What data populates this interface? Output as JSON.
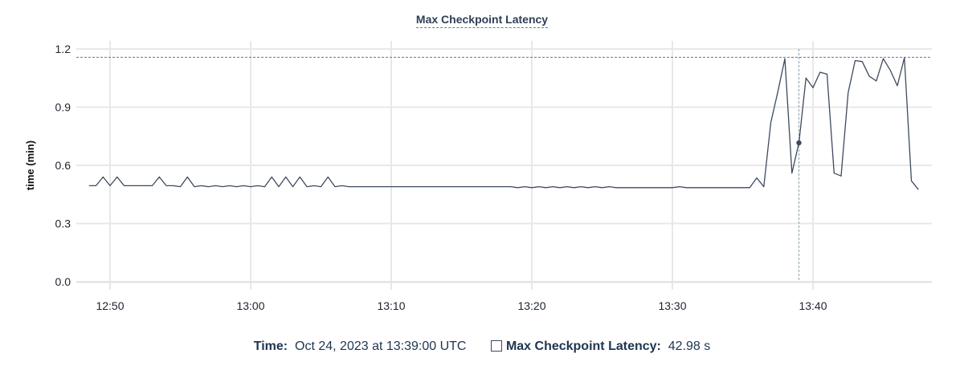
{
  "chart_data": {
    "type": "line",
    "title": "Max Checkpoint Latency",
    "xlabel": "",
    "ylabel": "time (min)",
    "ylim": [
      0,
      1.2
    ],
    "yticks": [
      "0.0",
      "0.3",
      "0.6",
      "0.9",
      "1.2"
    ],
    "xticks": [
      "12:50",
      "13:00",
      "13:10",
      "13:20",
      "13:30",
      "13:40"
    ],
    "grid": true,
    "line_color": "#3d4a5e",
    "threshold_line": 1.157,
    "hover": {
      "x": "13:39:00",
      "y": 0.716
    },
    "x": [
      "12:48:30",
      "12:49:00",
      "12:49:30",
      "12:50:00",
      "12:50:30",
      "12:51:00",
      "12:51:30",
      "12:52:00",
      "12:52:30",
      "12:53:00",
      "12:53:30",
      "12:54:00",
      "12:54:30",
      "12:55:00",
      "12:55:30",
      "12:56:00",
      "12:56:30",
      "12:57:00",
      "12:57:30",
      "12:58:00",
      "12:58:30",
      "12:59:00",
      "12:59:30",
      "13:00:00",
      "13:00:30",
      "13:01:00",
      "13:01:30",
      "13:02:00",
      "13:02:30",
      "13:03:00",
      "13:03:30",
      "13:04:00",
      "13:04:30",
      "13:05:00",
      "13:05:30",
      "13:06:00",
      "13:06:30",
      "13:07:00",
      "13:07:30",
      "13:08:00",
      "13:08:30",
      "13:09:00",
      "13:09:30",
      "13:10:00",
      "13:10:30",
      "13:11:00",
      "13:11:30",
      "13:12:00",
      "13:12:30",
      "13:13:00",
      "13:13:30",
      "13:14:00",
      "13:14:30",
      "13:15:00",
      "13:15:30",
      "13:16:00",
      "13:16:30",
      "13:17:00",
      "13:17:30",
      "13:18:00",
      "13:18:30",
      "13:19:00",
      "13:19:30",
      "13:20:00",
      "13:20:30",
      "13:21:00",
      "13:21:30",
      "13:22:00",
      "13:22:30",
      "13:23:00",
      "13:23:30",
      "13:24:00",
      "13:24:30",
      "13:25:00",
      "13:25:30",
      "13:26:00",
      "13:26:30",
      "13:27:00",
      "13:27:30",
      "13:28:00",
      "13:28:30",
      "13:29:00",
      "13:29:30",
      "13:30:00",
      "13:30:30",
      "13:31:00",
      "13:31:30",
      "13:32:00",
      "13:32:30",
      "13:33:00",
      "13:33:30",
      "13:34:00",
      "13:34:30",
      "13:35:00",
      "13:35:30",
      "13:36:00",
      "13:36:30",
      "13:37:00",
      "13:37:30",
      "13:38:00",
      "13:38:30",
      "13:39:00",
      "13:39:30",
      "13:40:00",
      "13:40:30",
      "13:41:00",
      "13:41:30",
      "13:42:00",
      "13:42:30",
      "13:43:00",
      "13:43:30",
      "13:44:00",
      "13:44:30",
      "13:45:00",
      "13:45:30",
      "13:46:00",
      "13:46:30",
      "13:47:00",
      "13:47:30"
    ],
    "values": [
      0.495,
      0.495,
      0.54,
      0.495,
      0.54,
      0.495,
      0.495,
      0.495,
      0.495,
      0.495,
      0.54,
      0.495,
      0.495,
      0.49,
      0.54,
      0.49,
      0.495,
      0.49,
      0.495,
      0.49,
      0.495,
      0.49,
      0.495,
      0.49,
      0.495,
      0.49,
      0.54,
      0.49,
      0.54,
      0.49,
      0.54,
      0.49,
      0.495,
      0.49,
      0.54,
      0.49,
      0.495,
      0.49,
      0.49,
      0.49,
      0.49,
      0.49,
      0.49,
      0.49,
      0.49,
      0.49,
      0.49,
      0.49,
      0.49,
      0.49,
      0.49,
      0.49,
      0.49,
      0.49,
      0.49,
      0.49,
      0.49,
      0.49,
      0.49,
      0.49,
      0.49,
      0.485,
      0.49,
      0.485,
      0.49,
      0.485,
      0.49,
      0.485,
      0.49,
      0.485,
      0.49,
      0.485,
      0.49,
      0.485,
      0.49,
      0.485,
      0.485,
      0.485,
      0.485,
      0.485,
      0.485,
      0.485,
      0.485,
      0.485,
      0.49,
      0.485,
      0.485,
      0.485,
      0.485,
      0.485,
      0.485,
      0.485,
      0.485,
      0.485,
      0.485,
      0.535,
      0.49,
      0.82,
      0.98,
      1.15,
      0.56,
      0.716,
      1.05,
      1.0,
      1.08,
      1.07,
      0.56,
      0.545,
      0.975,
      1.14,
      1.135,
      1.06,
      1.035,
      1.15,
      1.09,
      1.01,
      1.155,
      0.52,
      0.475
    ]
  },
  "footer": {
    "time_label": "Time:",
    "time_value": "Oct 24, 2023 at 13:39:00 UTC",
    "series_label": "Max Checkpoint Latency:",
    "series_value": "42.98 s"
  }
}
